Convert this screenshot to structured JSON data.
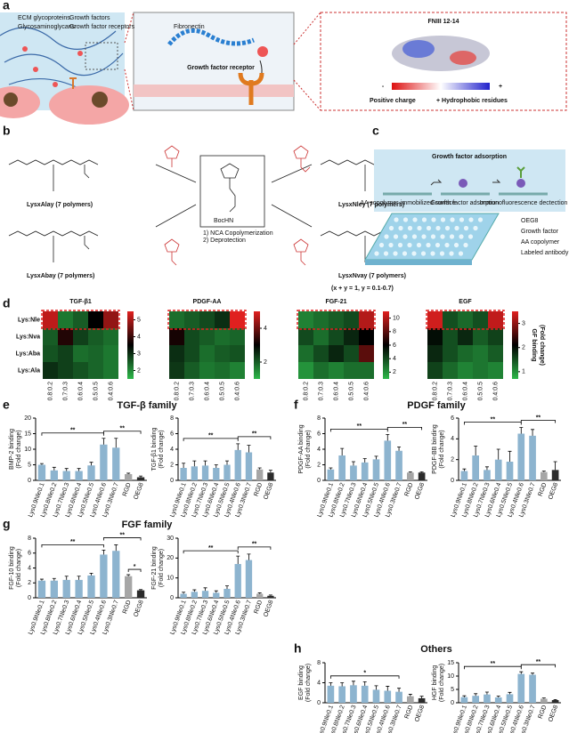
{
  "panels": {
    "a": {
      "label": "a",
      "legend": [
        "ECM glycoproteins",
        "Growth factors",
        "Glycosaminoglycans",
        "Growth factor receptors"
      ],
      "fibronectin": "Fibronectin",
      "receptor": "Growth factor receptor",
      "domain": "FNIII 12-14",
      "minus": "-",
      "plus": "+",
      "positive": "Positive charge",
      "hydrophobic": "+ Hydrophobic residues"
    },
    "b": {
      "label": "b",
      "monomer": "BocHN",
      "steps": [
        "1) NCA Copolymerization",
        "2) Deprotection"
      ],
      "products": [
        "LysxAlay (7 polymers)",
        "LysxAbay (7 polymers)",
        "LysxNley (7 polymers)",
        "LysxNvay (7 polymers)"
      ],
      "constraint": "(x + y = 1, y = 0.1-0.7)"
    },
    "c": {
      "label": "c",
      "banner": "Growth factor adsorption",
      "steps": [
        "AA copolymer-immobilized surface",
        "Growth factor adsorption",
        "Immunofluorescence dectection"
      ],
      "legend": [
        "OEG8",
        "Growth factor",
        "AA copolymer",
        "Labeled antibody"
      ]
    },
    "d": {
      "label": "d"
    },
    "e": {
      "label": "e",
      "title": "TGF-β family"
    },
    "f": {
      "label": "f",
      "title": "PDGF family"
    },
    "g": {
      "label": "g",
      "title": "FGF family"
    },
    "h": {
      "label": "h",
      "title": "Others"
    }
  },
  "chart_data": [
    {
      "type": "heatmap",
      "title": "TGF-β1",
      "rows": [
        "Lys:Nle",
        "Lys:Nva",
        "Lys:Aba",
        "Lys:Ala"
      ],
      "columns": [
        "0.8:0.2",
        "0.7:0.3",
        "0.6:0.4",
        "0.5:0.5",
        "0.4:0.6"
      ],
      "values": [
        [
          5.2,
          2.2,
          2.5,
          3.5,
          4.8
        ],
        [
          2.5,
          3.8,
          2.8,
          2.5,
          2.3
        ],
        [
          2.6,
          2.8,
          2.3,
          2.4,
          2.2
        ],
        [
          3.0,
          2.8,
          2.6,
          2.4,
          2.2
        ]
      ],
      "clim": [
        1.5,
        5.5
      ],
      "cticks": [
        2,
        3,
        4,
        5
      ]
    },
    {
      "type": "heatmap",
      "title": "PDGF-AA",
      "columns": [
        "0.8:0.2",
        "0.7:0.3",
        "0.6:0.4",
        "0.5:0.5",
        "0.4:0.6"
      ],
      "values": [
        [
          1.8,
          2,
          2.2,
          2.5,
          5
        ],
        [
          3.2,
          2.2,
          2,
          1.8,
          1.9
        ],
        [
          2.5,
          2.2,
          1.8,
          2,
          2.1
        ],
        [
          2.4,
          2,
          1.7,
          1.8,
          1.6
        ]
      ],
      "clim": [
        1,
        5
      ],
      "cticks": [
        2,
        4
      ]
    },
    {
      "type": "heatmap",
      "title": "FGF-21",
      "columns": [
        "0.8:0.2",
        "0.7:0.3",
        "0.6:0.4",
        "0.5:0.5",
        "0.4:0.6"
      ],
      "values": [
        [
          2.5,
          3,
          3.5,
          4,
          10
        ],
        [
          4,
          3,
          4,
          5,
          6
        ],
        [
          3,
          4,
          5,
          4,
          8
        ],
        [
          2,
          3,
          2.5,
          3,
          3
        ]
      ],
      "clim": [
        1,
        11
      ],
      "cticks": [
        2,
        4,
        6,
        8,
        10
      ]
    },
    {
      "type": "heatmap",
      "title": "EGF",
      "columns": [
        "0.8:0.2",
        "0.7:0.3",
        "0.6:0.4",
        "0.5:0.5",
        "0.4:0.6"
      ],
      "values": [
        [
          3.4,
          1.5,
          1.3,
          1.5,
          3.3
        ],
        [
          2,
          1.5,
          1.8,
          1.4,
          1.6
        ],
        [
          1.8,
          1.5,
          1.3,
          1.2,
          1.4
        ],
        [
          1.6,
          1.3,
          1.1,
          1.2,
          1.1
        ]
      ],
      "clim": [
        0.7,
        3.5
      ],
      "cticks": [
        1,
        2,
        3
      ],
      "clabel": [
        "GF binding",
        "(Fold change)"
      ]
    },
    {
      "type": "bar",
      "ylabel": [
        "BMP-2 binding",
        "(Fold change)"
      ],
      "categories": [
        "Lys0.9Nle0.1",
        "Lys0.8Nle0.2",
        "Lys0.7Nle0.3",
        "Lys0.6Nle0.4",
        "Lys0.5Nle0.5",
        "Lys0.4Nle0.6",
        "Lys0.3Nle0.7",
        "RGD",
        "OEG8"
      ],
      "values": [
        5,
        3.2,
        3,
        3,
        4.8,
        11.5,
        10.5,
        2,
        1
      ],
      "errors": [
        0.4,
        1,
        0.8,
        0.8,
        1,
        2,
        3,
        0.3,
        0.4
      ],
      "colors": [
        "#8db4cf",
        "#8db4cf",
        "#8db4cf",
        "#8db4cf",
        "#8db4cf",
        "#8db4cf",
        "#8db4cf",
        "#a6a6a6",
        "#2b2b2b"
      ],
      "ylim": [
        0,
        20
      ],
      "yticks": [
        0,
        5,
        10,
        15,
        20
      ],
      "annotations": [
        "**",
        "**"
      ]
    },
    {
      "type": "bar",
      "ylabel": [
        "TGF-β1 binding",
        "(Fold change)"
      ],
      "categories": [
        "Lys0.9Nle0.1",
        "Lys0.8Nle0.2",
        "Lys0.7Nle0.3",
        "Lys0.6Nle0.4",
        "Lys0.5Nle0.5",
        "Lys0.4Nle0.6",
        "Lys0.3Nle0.7",
        "RGD",
        "OEG8"
      ],
      "values": [
        1.6,
        1.8,
        1.9,
        1.6,
        2,
        3.9,
        3.6,
        1.4,
        1.0
      ],
      "errors": [
        0.6,
        0.7,
        0.6,
        0.4,
        0.5,
        0.8,
        0.9,
        0.2,
        0.3
      ],
      "colors": [
        "#8db4cf",
        "#8db4cf",
        "#8db4cf",
        "#8db4cf",
        "#8db4cf",
        "#8db4cf",
        "#8db4cf",
        "#a6a6a6",
        "#2b2b2b"
      ],
      "ylim": [
        0,
        8
      ],
      "yticks": [
        0,
        2,
        4,
        6,
        8
      ],
      "annotations": [
        "**",
        "**"
      ]
    },
    {
      "type": "bar",
      "ylabel": [
        "PDGF-AA binding",
        "(Fold change)"
      ],
      "categories": [
        "Lys0.9Nle0.1",
        "Lys0.8Nle0.2",
        "Lys0.7Nle0.3",
        "Lys0.6Nle0.4",
        "Lys0.5Nle0.5",
        "Lys0.4Nle0.6",
        "Lys0.3Nle0.7",
        "RGD",
        "OEG8"
      ],
      "values": [
        1.4,
        3.2,
        1.9,
        2.3,
        2.7,
        5.1,
        3.8,
        1,
        1
      ],
      "errors": [
        0.2,
        0.9,
        0.5,
        0.5,
        0.4,
        0.8,
        0.5,
        0.1,
        0.1
      ],
      "colors": [
        "#8db4cf",
        "#8db4cf",
        "#8db4cf",
        "#8db4cf",
        "#8db4cf",
        "#8db4cf",
        "#8db4cf",
        "#a6a6a6",
        "#2b2b2b"
      ],
      "ylim": [
        0,
        8
      ],
      "yticks": [
        0,
        2,
        4,
        6,
        8
      ],
      "annotations": [
        "**",
        "**"
      ]
    },
    {
      "type": "bar",
      "ylabel": [
        "PDGF-BB binding",
        "(Fold change)"
      ],
      "categories": [
        "Lys0.9Nle0.1",
        "Lys0.8Nle0.2",
        "Lys0.7Nle0.3",
        "Lys0.6Nle0.4",
        "Lys0.5Nle0.5",
        "Lys0.4Nle0.6",
        "Lys0.3Nle0.7",
        "RGD",
        "OEG8"
      ],
      "values": [
        0.9,
        2.4,
        1,
        2,
        1.8,
        4.5,
        4.3,
        0.8,
        1
      ],
      "errors": [
        0.2,
        0.9,
        0.3,
        1,
        1,
        0.6,
        0.6,
        0.1,
        0.8
      ],
      "colors": [
        "#8db4cf",
        "#8db4cf",
        "#8db4cf",
        "#8db4cf",
        "#8db4cf",
        "#8db4cf",
        "#8db4cf",
        "#a6a6a6",
        "#2b2b2b"
      ],
      "ylim": [
        0,
        6
      ],
      "yticks": [
        0,
        2,
        4,
        6
      ],
      "annotations": [
        "**",
        "**"
      ]
    },
    {
      "type": "bar",
      "ylabel": [
        "FGF-10 binding",
        "(Fold change)"
      ],
      "categories": [
        "Lys0.9Nle0.1",
        "Lys0.8Nle0.2",
        "Lys0.7Nle0.3",
        "Lys0.6Nle0.4",
        "Lys0.5Nle0.5",
        "Lys0.4Nle0.6",
        "Lys0.3Nle0.7",
        "RGD",
        "OEG8"
      ],
      "values": [
        2.3,
        2.3,
        2.4,
        2.4,
        3,
        5.8,
        6.3,
        2.9,
        1
      ],
      "errors": [
        0.2,
        0.3,
        0.5,
        0.5,
        0.3,
        0.6,
        0.8,
        0.2,
        0.1
      ],
      "colors": [
        "#8db4cf",
        "#8db4cf",
        "#8db4cf",
        "#8db4cf",
        "#8db4cf",
        "#8db4cf",
        "#8db4cf",
        "#a6a6a6",
        "#2b2b2b"
      ],
      "ylim": [
        0,
        8
      ],
      "yticks": [
        0,
        2,
        4,
        6,
        8
      ],
      "annotations": [
        "**",
        "**",
        "*"
      ]
    },
    {
      "type": "bar",
      "ylabel": [
        "FGF-21 binding",
        "(Fold change)"
      ],
      "categories": [
        "Lys0.9Nle0.1",
        "Lys0.8Nle0.2",
        "Lys0.7Nle0.3",
        "Lys0.6Nle0.4",
        "Lys0.5Nle0.5",
        "Lys0.4Nle0.6",
        "Lys0.3Nle0.7",
        "RGD",
        "OEG8"
      ],
      "values": [
        2,
        3,
        3.5,
        2.5,
        4.5,
        17,
        19,
        2,
        1
      ],
      "errors": [
        0.8,
        1,
        1.5,
        1,
        1.5,
        4,
        3,
        0.5,
        0.4
      ],
      "colors": [
        "#8db4cf",
        "#8db4cf",
        "#8db4cf",
        "#8db4cf",
        "#8db4cf",
        "#8db4cf",
        "#8db4cf",
        "#a6a6a6",
        "#2b2b2b"
      ],
      "ylim": [
        0,
        30
      ],
      "yticks": [
        0,
        10,
        20,
        30
      ],
      "annotations": [
        "**",
        "**"
      ]
    },
    {
      "type": "bar",
      "ylabel": [
        "EGF binding",
        "(Fold change)"
      ],
      "categories": [
        "Lys0.9Nle0.1",
        "Lys0.8Nle0.2",
        "Lys0.7Nle0.3",
        "Lys0.6Nle0.4",
        "Lys0.5Nle0.5",
        "Lys0.4Nle0.6",
        "Lys0.3Nle0.7",
        "RGD",
        "OEG8"
      ],
      "values": [
        3.4,
        3.3,
        3.5,
        3.4,
        2.6,
        2.4,
        2.2,
        1.3,
        0.9
      ],
      "errors": [
        0.6,
        0.7,
        0.8,
        0.8,
        0.8,
        0.9,
        0.7,
        0.4,
        0.4
      ],
      "colors": [
        "#8db4cf",
        "#8db4cf",
        "#8db4cf",
        "#8db4cf",
        "#8db4cf",
        "#8db4cf",
        "#8db4cf",
        "#a6a6a6",
        "#2b2b2b"
      ],
      "ylim": [
        0,
        8
      ],
      "yticks": [
        0,
        4,
        8
      ],
      "annotations": [
        "*"
      ]
    },
    {
      "type": "bar",
      "ylabel": [
        "HGF binding",
        "(Fold change)"
      ],
      "categories": [
        "Lys0.9Nle0.1",
        "Lys0.8Nle0.2",
        "Lys0.7Nle0.3",
        "Lys0.6Nle0.4",
        "Lys0.5Nle0.5",
        "Lys0.4Nle0.6",
        "Lys0.3Nle0.7",
        "RGD",
        "OEG8"
      ],
      "values": [
        2.1,
        2.6,
        3.1,
        2,
        3.2,
        10.8,
        10.5,
        1.5,
        1
      ],
      "errors": [
        0.5,
        0.8,
        0.9,
        0.5,
        0.7,
        0.8,
        0.6,
        0.3,
        0.2
      ],
      "colors": [
        "#8db4cf",
        "#8db4cf",
        "#8db4cf",
        "#8db4cf",
        "#8db4cf",
        "#8db4cf",
        "#8db4cf",
        "#a6a6a6",
        "#2b2b2b"
      ],
      "ylim": [
        0,
        15
      ],
      "yticks": [
        0,
        5,
        10,
        15
      ],
      "annotations": [
        "**",
        "**"
      ]
    }
  ]
}
